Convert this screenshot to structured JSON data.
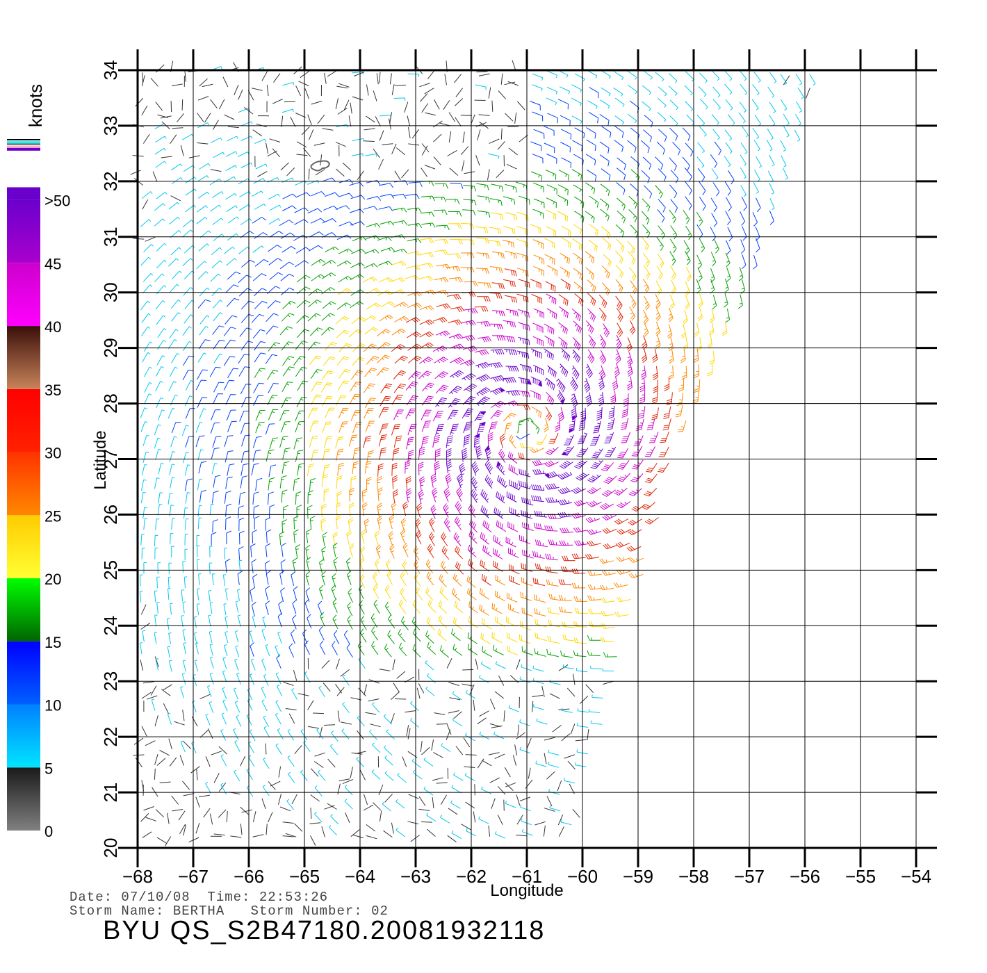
{
  "axes": {
    "xlabel": "Longitude",
    "ylabel": "Latitude",
    "lon_ticks": [
      -68,
      -67,
      -66,
      -65,
      -64,
      -63,
      -62,
      -61,
      -60,
      -59,
      -58,
      -57,
      -56,
      -55,
      -54
    ],
    "lat_ticks": [
      20,
      21,
      22,
      23,
      24,
      25,
      26,
      27,
      28,
      29,
      30,
      31,
      32,
      33,
      34
    ],
    "lon_range": [
      -68,
      -54
    ],
    "lat_range": [
      20,
      34
    ]
  },
  "legend": {
    "title": "knots",
    "bins": [
      {
        "label": "0",
        "colors": [
          "#808080",
          "#1a1a1a"
        ]
      },
      {
        "label": "5",
        "colors": [
          "#00e5ff",
          "#0080ff"
        ]
      },
      {
        "label": "10",
        "colors": [
          "#0060ff",
          "#0000ff"
        ]
      },
      {
        "label": "15",
        "colors": [
          "#006400",
          "#00ff00"
        ]
      },
      {
        "label": "20",
        "colors": [
          "#ffff33",
          "#ffcc00"
        ]
      },
      {
        "label": "25",
        "colors": [
          "#ff8800",
          "#ff3300"
        ]
      },
      {
        "label": "30",
        "colors": [
          "#ff2200",
          "#ff0000"
        ]
      },
      {
        "label": "35",
        "colors": [
          "#c8845a",
          "#3a0f0a"
        ]
      },
      {
        "label": "40",
        "colors": [
          "#ff00ff",
          "#cc00cc"
        ]
      },
      {
        "label": "45",
        "colors": [
          "#aa00cc",
          "#6a00cc"
        ]
      },
      {
        "label": ">50",
        "colors": [
          "#6a00cc",
          "#6a00cc"
        ]
      }
    ]
  },
  "storm": {
    "center_lon": -61.0,
    "center_lat": 27.5,
    "max_speed_kt": 52
  },
  "footer": {
    "line1": "Date: 07/10/08  Time: 22:53:26",
    "line2": "Storm Name: BERTHA   Storm Number: 02",
    "title": "BYU QS_S2B47180.20081932118"
  }
}
